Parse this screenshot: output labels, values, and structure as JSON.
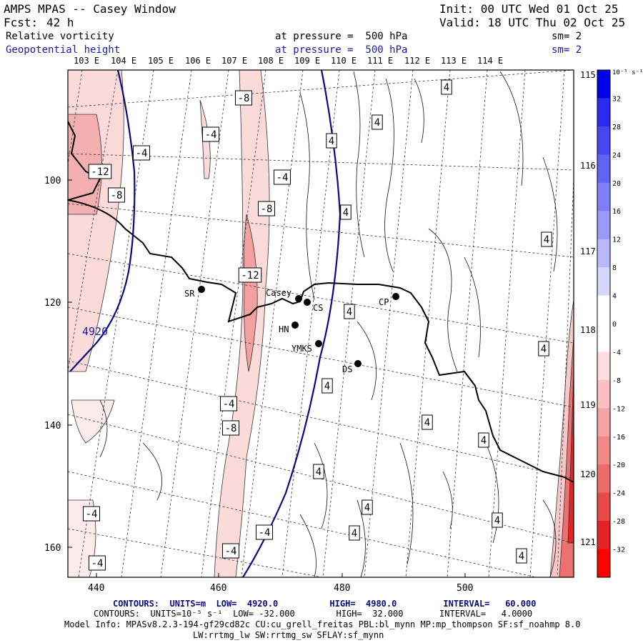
{
  "header": {
    "title": "AMPS MPAS -- Casey Window",
    "forecast_label": "Fcst:",
    "forecast_value": "42 h",
    "init": "Init: 00 UTC Wed 01 Oct 25",
    "valid": "Valid: 18 UTC Thu 02 Oct 25",
    "field1_name": "Relative vorticity",
    "field1_level": "at pressure =  500 hPa",
    "field1_sm": "sm= 2",
    "field2_name": "Geopotential height",
    "field2_level": "at pressure =  500 hPa",
    "field2_sm": "sm= 2"
  },
  "map": {
    "top_longitudes": [
      "103 E",
      "104 E",
      "105 E",
      "106 E",
      "107 E",
      "108 E",
      "109 E",
      "110 E",
      "111 E",
      "112 E",
      "113 E",
      "114 E"
    ],
    "right_longitudes": [
      "115 E",
      "116 E",
      "117 E",
      "118 E",
      "119 E",
      "120 E",
      "121 E"
    ],
    "x_ticks": [
      "440",
      "460",
      "480",
      "500"
    ],
    "y_ticks": [
      "100",
      "120",
      "140",
      "160"
    ],
    "height_contour_label": "4920",
    "stations": [
      {
        "id": "SR",
        "label": "SR"
      },
      {
        "id": "Casey",
        "label": "Casey"
      },
      {
        "id": "CS",
        "label": "CS"
      },
      {
        "id": "CP",
        "label": "CP"
      },
      {
        "id": "HN",
        "label": "HN"
      },
      {
        "id": "YMKS",
        "label": "YMKS"
      },
      {
        "id": "DS",
        "label": "DS"
      }
    ],
    "contour_labels": [
      "-8",
      "-4",
      "-4",
      "-12",
      "-8",
      "-4",
      "-8",
      "-12",
      "4",
      "4",
      "4",
      "4",
      "4",
      "4",
      "4",
      "4",
      "-4",
      "-8",
      "4",
      "4",
      "4",
      "4",
      "4",
      "4",
      "-4",
      "-4",
      "-4",
      "-4",
      "4"
    ]
  },
  "colorbar": {
    "unit": "10⁻⁵ s⁻¹",
    "levels": [
      "32",
      "28",
      "24",
      "20",
      "16",
      "12",
      "8",
      "4",
      "0",
      "-4",
      "-8",
      "-12",
      "-16",
      "-20",
      "-24",
      "-28",
      "-32"
    ],
    "colors": [
      "#0000e8",
      "#2a2af0",
      "#4646f2",
      "#6262f4",
      "#7e7ef6",
      "#9a9af8",
      "#b8b8fa",
      "#d6d6fc",
      "#ffffff",
      "#ffffff",
      "#fcdcdc",
      "#f8c0c0",
      "#f4a4a4",
      "#f08888",
      "#ec6c6c",
      "#e84848",
      "#e42424",
      "#ff0000"
    ]
  },
  "footer": {
    "line1": "CONTOURS:  UNITS=m  LOW=  4920.0          HIGH=  4980.0         INTERVAL=   60.000",
    "line2": "CONTOURS:  UNITS=10⁻⁵ s⁻¹  LOW= -32.000        HIGH=  32.000       INTERVAL=   4.0000",
    "line3": "Model Info: MPASv8.2.3-194-gf29cd82c CU:cu_grell_freitas PBL:bl_mynn MP:mp_thompson SF:sf_noahmp 8.0",
    "line4": "LW:rrtmg_lw SW:rrtmg_sw SFLAY:sf_mynn"
  }
}
